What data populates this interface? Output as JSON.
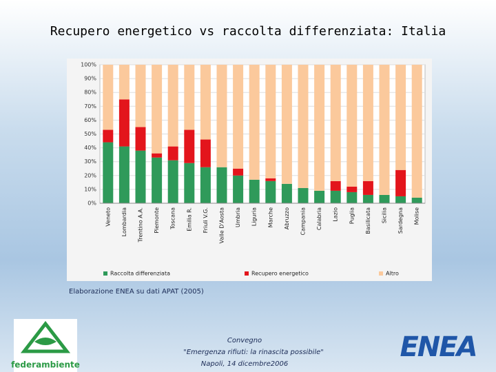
{
  "chart_data": {
    "type": "stacked_bar",
    "title": "Recupero energetico vs raccolta differenziata: Italia",
    "categories": [
      "Veneto",
      "Lombardia",
      "Trentino A.A.",
      "Piemonte",
      "Toscana",
      "Emilia R.",
      "Friuli V.G.",
      "Valle D'Aosta",
      "Umbria",
      "Liguria",
      "Marche",
      "Abruzzo",
      "Campania",
      "Calabria",
      "Lazio",
      "Puglia",
      "Basilicata",
      "Sicilia",
      "Sardegna",
      "Molise"
    ],
    "series": [
      {
        "name": "Raccolta differenziata",
        "color": "#2f9a5a",
        "values": [
          44,
          41,
          38,
          33,
          31,
          29,
          26,
          26,
          20,
          17,
          16,
          14,
          11,
          9,
          9,
          8,
          6,
          6,
          5,
          4
        ]
      },
      {
        "name": "Recupero energetico",
        "color": "#e3151c",
        "values": [
          9,
          34,
          17,
          3,
          10,
          24,
          20,
          0,
          5,
          0,
          2,
          0,
          0,
          0,
          7,
          4,
          10,
          0,
          19,
          0
        ]
      },
      {
        "name": "Altro",
        "color": "#fbc99c",
        "values": [
          47,
          25,
          45,
          64,
          59,
          47,
          54,
          74,
          75,
          83,
          82,
          86,
          89,
          91,
          84,
          88,
          84,
          94,
          76,
          96
        ]
      }
    ],
    "ylim": [
      0,
      100
    ],
    "yticks": [
      {
        "value": 0,
        "label": "0%"
      },
      {
        "value": 10,
        "label": "10%"
      },
      {
        "value": 20,
        "label": "20%"
      },
      {
        "value": 30,
        "label": "30%"
      },
      {
        "value": 40,
        "label": "40%"
      },
      {
        "value": 50,
        "label": "50%"
      },
      {
        "value": 60,
        "label": "60%"
      },
      {
        "value": 70,
        "label": "70%"
      },
      {
        "value": 80,
        "label": "80%"
      },
      {
        "value": 90,
        "label": "90%"
      },
      {
        "value": 100,
        "label": "100%"
      }
    ],
    "grid": true,
    "legend": "bottom"
  },
  "slide": {
    "source": "Elaborazione ENEA su dati APAT (2005)",
    "footer": [
      "Convegno",
      "\"Emergenza rifiuti: la rinascita possibile\"",
      "Napoli, 14 dicembre2006"
    ],
    "logo_left": "federambiente",
    "logo_right": "ENEA"
  }
}
